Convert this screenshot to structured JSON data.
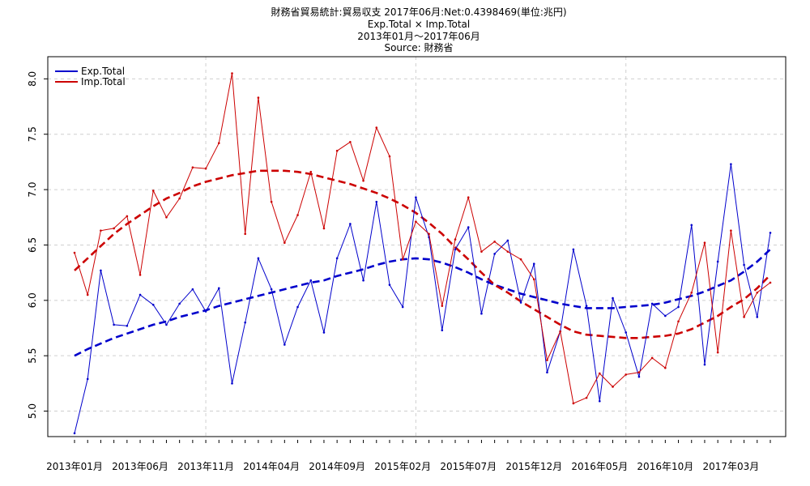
{
  "chart_data": {
    "type": "line",
    "title": "財務省貿易統計:貿易収支 2017年06月:Net:0.4398469(単位:兆円)",
    "subtitle": "Exp.Total × Imp.Total",
    "period": "2013年01月～2017年06月",
    "source": "Source: 財務省",
    "xlabel": "",
    "ylabel": "",
    "ylim": [
      4.77,
      8.2
    ],
    "yticks": [
      "5.0",
      "5.5",
      "6.0",
      "6.5",
      "7.0",
      "7.5",
      "8.0"
    ],
    "xtick_labels": [
      "2013年01月",
      "2013年06月",
      "2013年11月",
      "2014年04月",
      "2014年09月",
      "2015年02月",
      "2015年07月",
      "2015年12月",
      "2016年05月",
      "2016年10月",
      "2017年03月"
    ],
    "grid": true,
    "legend_position": "top-left",
    "n_points": 54,
    "series": [
      {
        "name": "Exp.Total",
        "color": "#0000cc",
        "values": [
          4.8,
          5.29,
          6.27,
          5.78,
          5.77,
          6.05,
          5.96,
          5.78,
          5.97,
          6.1,
          5.9,
          6.11,
          5.25,
          5.8,
          6.38,
          6.1,
          5.6,
          5.94,
          6.18,
          5.71,
          6.38,
          6.69,
          6.18,
          6.89,
          6.14,
          5.94,
          6.93,
          6.57,
          5.73,
          6.46,
          6.66,
          5.88,
          6.42,
          6.54,
          5.98,
          6.33,
          5.35,
          5.72,
          6.46,
          5.95,
          5.09,
          6.02,
          5.71,
          5.31,
          5.97,
          5.86,
          5.94,
          6.68,
          5.42,
          6.35,
          7.23,
          6.32,
          5.85,
          6.61
        ]
      },
      {
        "name": "Imp.Total",
        "color": "#cc0000",
        "values": [
          6.43,
          6.05,
          6.63,
          6.65,
          6.76,
          6.23,
          6.99,
          6.75,
          6.92,
          7.2,
          7.19,
          7.42,
          8.05,
          6.6,
          7.83,
          6.89,
          6.52,
          6.77,
          7.16,
          6.65,
          7.35,
          7.43,
          7.08,
          7.56,
          7.3,
          6.37,
          6.71,
          6.6,
          5.95,
          6.55,
          6.93,
          6.44,
          6.53,
          6.44,
          6.37,
          6.19,
          5.46,
          5.72,
          5.07,
          5.12,
          5.34,
          5.22,
          5.33,
          5.35,
          5.48,
          5.39,
          5.81,
          6.07,
          6.52,
          5.53,
          6.63,
          5.85,
          6.07,
          6.16
        ]
      },
      {
        "name": "Exp.Total trend",
        "color": "#0000cc",
        "style": "dashed",
        "values": [
          5.5,
          5.56,
          5.61,
          5.66,
          5.7,
          5.74,
          5.78,
          5.81,
          5.85,
          5.88,
          5.91,
          5.95,
          5.98,
          6.01,
          6.04,
          6.07,
          6.1,
          6.13,
          6.16,
          6.18,
          6.22,
          6.25,
          6.28,
          6.32,
          6.35,
          6.37,
          6.38,
          6.37,
          6.34,
          6.3,
          6.25,
          6.19,
          6.14,
          6.1,
          6.06,
          6.03,
          6.0,
          5.97,
          5.95,
          5.93,
          5.93,
          5.93,
          5.94,
          5.95,
          5.96,
          5.98,
          6.01,
          6.04,
          6.08,
          6.13,
          6.18,
          6.26,
          6.35,
          6.46
        ]
      },
      {
        "name": "Imp.Total trend",
        "color": "#cc0000",
        "style": "dashed",
        "values": [
          6.27,
          6.38,
          6.49,
          6.6,
          6.69,
          6.77,
          6.85,
          6.92,
          6.97,
          7.03,
          7.07,
          7.1,
          7.13,
          7.15,
          7.17,
          7.17,
          7.17,
          7.16,
          7.14,
          7.11,
          7.08,
          7.05,
          7.01,
          6.97,
          6.92,
          6.86,
          6.79,
          6.7,
          6.6,
          6.48,
          6.37,
          6.25,
          6.14,
          6.07,
          5.99,
          5.92,
          5.85,
          5.78,
          5.72,
          5.69,
          5.68,
          5.67,
          5.66,
          5.66,
          5.67,
          5.68,
          5.7,
          5.74,
          5.8,
          5.86,
          5.94,
          6.01,
          6.11,
          6.23
        ]
      }
    ]
  }
}
